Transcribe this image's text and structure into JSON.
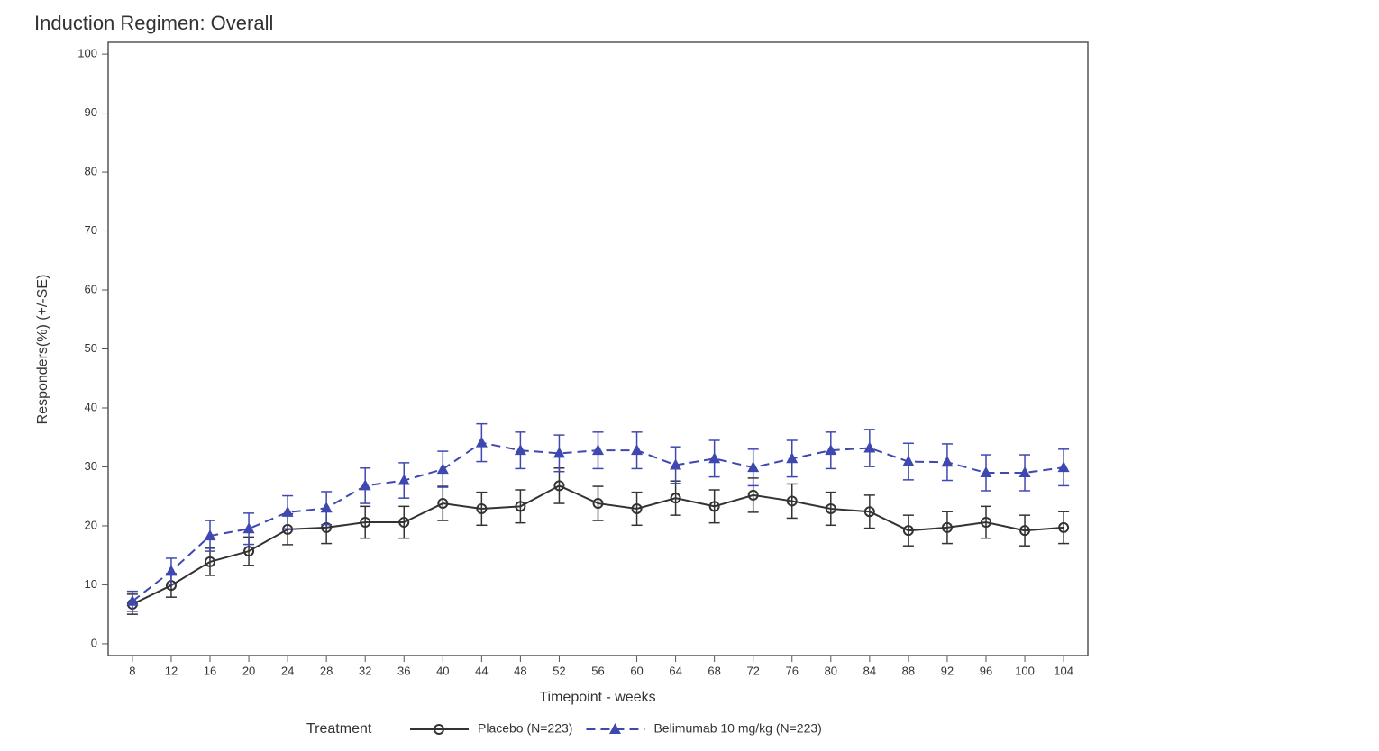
{
  "chart_data": {
    "type": "line",
    "title": "Induction Regimen: Overall",
    "x_label": "Timepoint - weeks",
    "y_label": "Responders(%) (+/-SE)",
    "legend_title": "Treatment",
    "legend_position": "bottom",
    "x": [
      8,
      12,
      16,
      20,
      24,
      28,
      32,
      36,
      40,
      44,
      48,
      52,
      56,
      60,
      64,
      68,
      72,
      76,
      80,
      84,
      88,
      92,
      96,
      100,
      104
    ],
    "xlim": [
      5.5,
      106.5
    ],
    "xticks": [
      8,
      12,
      16,
      20,
      24,
      28,
      32,
      36,
      40,
      44,
      48,
      52,
      56,
      60,
      64,
      68,
      72,
      76,
      80,
      84,
      88,
      92,
      96,
      100,
      104
    ],
    "ylim": [
      -2,
      102
    ],
    "yticks": [
      0,
      10,
      20,
      30,
      40,
      50,
      60,
      70,
      80,
      90,
      100
    ],
    "grid": false,
    "series": [
      {
        "name": "Placebo (N=223)",
        "color": "#333333",
        "marker": "circle",
        "dashed": false,
        "values": [
          6.7,
          9.9,
          13.9,
          15.7,
          19.4,
          19.7,
          20.6,
          20.6,
          23.8,
          22.9,
          23.3,
          26.8,
          23.8,
          22.9,
          24.7,
          23.3,
          25.2,
          24.2,
          22.9,
          22.4,
          19.2,
          19.7,
          20.6,
          19.2,
          19.7
        ],
        "errors": [
          1.7,
          2.0,
          2.3,
          2.4,
          2.6,
          2.7,
          2.7,
          2.7,
          2.9,
          2.8,
          2.8,
          3.0,
          2.9,
          2.8,
          2.9,
          2.8,
          2.9,
          2.9,
          2.8,
          2.8,
          2.6,
          2.7,
          2.7,
          2.6,
          2.7
        ]
      },
      {
        "name": "Belimumab 10 mg/kg (N=223)",
        "color": "#3f48b0",
        "marker": "triangle",
        "dashed": true,
        "values": [
          7.2,
          12.3,
          18.3,
          19.5,
          22.3,
          23.0,
          26.8,
          27.7,
          29.6,
          34.1,
          32.8,
          32.3,
          32.8,
          32.8,
          30.3,
          31.4,
          29.9,
          31.4,
          32.8,
          33.2,
          30.9,
          30.8,
          29.0,
          29.0,
          29.9
        ],
        "errors": [
          1.7,
          2.2,
          2.6,
          2.65,
          2.8,
          2.8,
          3.0,
          3.0,
          3.05,
          3.2,
          3.1,
          3.1,
          3.1,
          3.1,
          3.1,
          3.1,
          3.1,
          3.1,
          3.1,
          3.15,
          3.1,
          3.1,
          3.05,
          3.05,
          3.1
        ]
      }
    ]
  }
}
